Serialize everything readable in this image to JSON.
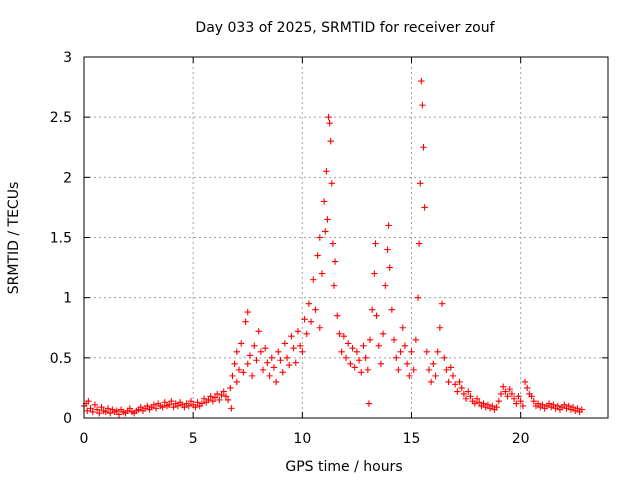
{
  "colors": {
    "series": "#ff0000",
    "axis": "#000000",
    "grid": "#a0a0a0",
    "background": "#ffffff"
  },
  "chart_data": {
    "type": "scatter",
    "marker": "plus",
    "title": "Day 033 of 2025, SRMTID for receiver zouf",
    "xlabel": "GPS time / hours",
    "ylabel": "SRMTID / TECUs",
    "xlim": [
      0,
      24
    ],
    "ylim": [
      0,
      3
    ],
    "xticks": [
      0,
      5,
      10,
      15,
      20
    ],
    "xtick_labels": [
      "0",
      "5",
      "10",
      "15",
      "20"
    ],
    "yticks": [
      0,
      0.5,
      1,
      1.5,
      2,
      2.5,
      3
    ],
    "ytick_labels": [
      "0",
      "0.5",
      "1",
      "1.5",
      "2",
      "2.5",
      "3"
    ],
    "grid": true,
    "series": [
      {
        "name": "SRMTID",
        "color": "#ff0000",
        "points": [
          [
            0.0,
            0.1
          ],
          [
            0.1,
            0.12
          ],
          [
            0.15,
            0.06
          ],
          [
            0.2,
            0.14
          ],
          [
            0.3,
            0.08
          ],
          [
            0.4,
            0.05
          ],
          [
            0.5,
            0.11
          ],
          [
            0.6,
            0.07
          ],
          [
            0.7,
            0.04
          ],
          [
            0.8,
            0.09
          ],
          [
            0.9,
            0.06
          ],
          [
            1.0,
            0.05
          ],
          [
            1.1,
            0.08
          ],
          [
            1.2,
            0.04
          ],
          [
            1.3,
            0.07
          ],
          [
            1.4,
            0.05
          ],
          [
            1.5,
            0.06
          ],
          [
            1.6,
            0.03
          ],
          [
            1.7,
            0.07
          ],
          [
            1.8,
            0.05
          ],
          [
            1.9,
            0.04
          ],
          [
            2.0,
            0.06
          ],
          [
            2.1,
            0.08
          ],
          [
            2.2,
            0.05
          ],
          [
            2.3,
            0.04
          ],
          [
            2.4,
            0.06
          ],
          [
            2.5,
            0.07
          ],
          [
            2.6,
            0.09
          ],
          [
            2.7,
            0.06
          ],
          [
            2.8,
            0.08
          ],
          [
            2.9,
            0.1
          ],
          [
            3.0,
            0.07
          ],
          [
            3.1,
            0.09
          ],
          [
            3.2,
            0.11
          ],
          [
            3.3,
            0.08
          ],
          [
            3.4,
            0.12
          ],
          [
            3.5,
            0.1
          ],
          [
            3.6,
            0.09
          ],
          [
            3.7,
            0.13
          ],
          [
            3.8,
            0.1
          ],
          [
            3.9,
            0.11
          ],
          [
            4.0,
            0.14
          ],
          [
            4.1,
            0.09
          ],
          [
            4.2,
            0.12
          ],
          [
            4.3,
            0.1
          ],
          [
            4.4,
            0.13
          ],
          [
            4.5,
            0.11
          ],
          [
            4.6,
            0.09
          ],
          [
            4.7,
            0.12
          ],
          [
            4.8,
            0.1
          ],
          [
            4.9,
            0.14
          ],
          [
            5.0,
            0.11
          ],
          [
            5.1,
            0.09
          ],
          [
            5.2,
            0.13
          ],
          [
            5.3,
            0.1
          ],
          [
            5.4,
            0.12
          ],
          [
            5.5,
            0.16
          ],
          [
            5.6,
            0.13
          ],
          [
            5.7,
            0.15
          ],
          [
            5.8,
            0.18
          ],
          [
            5.9,
            0.14
          ],
          [
            6.0,
            0.17
          ],
          [
            6.1,
            0.2
          ],
          [
            6.2,
            0.15
          ],
          [
            6.3,
            0.19
          ],
          [
            6.4,
            0.22
          ],
          [
            6.5,
            0.18
          ],
          [
            6.6,
            0.15
          ],
          [
            6.7,
            0.25
          ],
          [
            6.75,
            0.08
          ],
          [
            6.8,
            0.35
          ],
          [
            6.9,
            0.45
          ],
          [
            7.0,
            0.55
          ],
          [
            7.0,
            0.3
          ],
          [
            7.1,
            0.4
          ],
          [
            7.2,
            0.62
          ],
          [
            7.3,
            0.38
          ],
          [
            7.4,
            0.8
          ],
          [
            7.5,
            0.88
          ],
          [
            7.5,
            0.45
          ],
          [
            7.6,
            0.52
          ],
          [
            7.7,
            0.35
          ],
          [
            7.8,
            0.6
          ],
          [
            7.9,
            0.48
          ],
          [
            8.0,
            0.72
          ],
          [
            8.1,
            0.55
          ],
          [
            8.2,
            0.4
          ],
          [
            8.3,
            0.58
          ],
          [
            8.4,
            0.46
          ],
          [
            8.5,
            0.35
          ],
          [
            8.6,
            0.5
          ],
          [
            8.7,
            0.42
          ],
          [
            8.8,
            0.3
          ],
          [
            8.9,
            0.55
          ],
          [
            9.0,
            0.48
          ],
          [
            9.1,
            0.38
          ],
          [
            9.2,
            0.62
          ],
          [
            9.3,
            0.5
          ],
          [
            9.4,
            0.44
          ],
          [
            9.5,
            0.68
          ],
          [
            9.6,
            0.58
          ],
          [
            9.7,
            0.46
          ],
          [
            9.8,
            0.72
          ],
          [
            9.9,
            0.6
          ],
          [
            10.0,
            0.55
          ],
          [
            10.1,
            0.82
          ],
          [
            10.2,
            0.7
          ],
          [
            10.3,
            0.95
          ],
          [
            10.4,
            0.8
          ],
          [
            10.5,
            1.15
          ],
          [
            10.6,
            0.9
          ],
          [
            10.7,
            1.35
          ],
          [
            10.8,
            1.5
          ],
          [
            10.8,
            0.75
          ],
          [
            10.9,
            1.2
          ],
          [
            11.0,
            1.8
          ],
          [
            11.05,
            1.55
          ],
          [
            11.1,
            2.05
          ],
          [
            11.15,
            1.65
          ],
          [
            11.2,
            2.5
          ],
          [
            11.25,
            2.45
          ],
          [
            11.3,
            2.3
          ],
          [
            11.35,
            1.95
          ],
          [
            11.4,
            1.45
          ],
          [
            11.45,
            1.1
          ],
          [
            11.5,
            1.3
          ],
          [
            11.6,
            0.85
          ],
          [
            11.7,
            0.7
          ],
          [
            11.8,
            0.55
          ],
          [
            11.9,
            0.68
          ],
          [
            12.0,
            0.5
          ],
          [
            12.1,
            0.62
          ],
          [
            12.2,
            0.45
          ],
          [
            12.3,
            0.58
          ],
          [
            12.4,
            0.42
          ],
          [
            12.5,
            0.55
          ],
          [
            12.6,
            0.48
          ],
          [
            12.7,
            0.38
          ],
          [
            12.8,
            0.6
          ],
          [
            12.9,
            0.5
          ],
          [
            13.0,
            0.4
          ],
          [
            13.05,
            0.12
          ],
          [
            13.1,
            0.65
          ],
          [
            13.2,
            0.9
          ],
          [
            13.3,
            1.2
          ],
          [
            13.35,
            1.45
          ],
          [
            13.4,
            0.85
          ],
          [
            13.5,
            0.6
          ],
          [
            13.6,
            0.45
          ],
          [
            13.7,
            0.7
          ],
          [
            13.8,
            1.1
          ],
          [
            13.9,
            1.4
          ],
          [
            13.95,
            1.6
          ],
          [
            14.0,
            1.25
          ],
          [
            14.1,
            0.9
          ],
          [
            14.2,
            0.65
          ],
          [
            14.3,
            0.5
          ],
          [
            14.4,
            0.4
          ],
          [
            14.5,
            0.55
          ],
          [
            14.6,
            0.75
          ],
          [
            14.7,
            0.6
          ],
          [
            14.8,
            0.45
          ],
          [
            14.9,
            0.35
          ],
          [
            15.0,
            0.55
          ],
          [
            15.1,
            0.4
          ],
          [
            15.2,
            0.65
          ],
          [
            15.3,
            1.0
          ],
          [
            15.35,
            1.45
          ],
          [
            15.4,
            1.95
          ],
          [
            15.45,
            2.8
          ],
          [
            15.5,
            2.6
          ],
          [
            15.55,
            2.25
          ],
          [
            15.6,
            1.75
          ],
          [
            15.7,
            0.55
          ],
          [
            15.8,
            0.4
          ],
          [
            15.9,
            0.3
          ],
          [
            16.0,
            0.45
          ],
          [
            16.1,
            0.35
          ],
          [
            16.2,
            0.55
          ],
          [
            16.3,
            0.75
          ],
          [
            16.4,
            0.95
          ],
          [
            16.5,
            0.5
          ],
          [
            16.6,
            0.4
          ],
          [
            16.7,
            0.3
          ],
          [
            16.8,
            0.42
          ],
          [
            16.9,
            0.35
          ],
          [
            17.0,
            0.28
          ],
          [
            17.1,
            0.22
          ],
          [
            17.2,
            0.3
          ],
          [
            17.3,
            0.25
          ],
          [
            17.4,
            0.2
          ],
          [
            17.5,
            0.16
          ],
          [
            17.6,
            0.22
          ],
          [
            17.7,
            0.18
          ],
          [
            17.8,
            0.14
          ],
          [
            17.9,
            0.12
          ],
          [
            18.0,
            0.16
          ],
          [
            18.1,
            0.13
          ],
          [
            18.2,
            0.1
          ],
          [
            18.3,
            0.12
          ],
          [
            18.4,
            0.09
          ],
          [
            18.5,
            0.11
          ],
          [
            18.6,
            0.08
          ],
          [
            18.7,
            0.1
          ],
          [
            18.8,
            0.07
          ],
          [
            18.9,
            0.09
          ],
          [
            19.0,
            0.14
          ],
          [
            19.1,
            0.2
          ],
          [
            19.2,
            0.26
          ],
          [
            19.3,
            0.22
          ],
          [
            19.4,
            0.18
          ],
          [
            19.5,
            0.24
          ],
          [
            19.6,
            0.2
          ],
          [
            19.7,
            0.16
          ],
          [
            19.8,
            0.12
          ],
          [
            19.9,
            0.18
          ],
          [
            20.0,
            0.14
          ],
          [
            20.1,
            0.1
          ],
          [
            20.2,
            0.3
          ],
          [
            20.3,
            0.25
          ],
          [
            20.4,
            0.2
          ],
          [
            20.5,
            0.18
          ],
          [
            20.6,
            0.14
          ],
          [
            20.7,
            0.1
          ],
          [
            20.8,
            0.12
          ],
          [
            20.9,
            0.09
          ],
          [
            21.0,
            0.11
          ],
          [
            21.1,
            0.08
          ],
          [
            21.2,
            0.1
          ],
          [
            21.3,
            0.12
          ],
          [
            21.4,
            0.09
          ],
          [
            21.5,
            0.11
          ],
          [
            21.6,
            0.08
          ],
          [
            21.7,
            0.1
          ],
          [
            21.8,
            0.07
          ],
          [
            21.9,
            0.09
          ],
          [
            22.0,
            0.11
          ],
          [
            22.1,
            0.08
          ],
          [
            22.2,
            0.1
          ],
          [
            22.3,
            0.07
          ],
          [
            22.4,
            0.09
          ],
          [
            22.5,
            0.06
          ],
          [
            22.6,
            0.08
          ],
          [
            22.7,
            0.05
          ],
          [
            22.8,
            0.07
          ]
        ]
      }
    ]
  }
}
